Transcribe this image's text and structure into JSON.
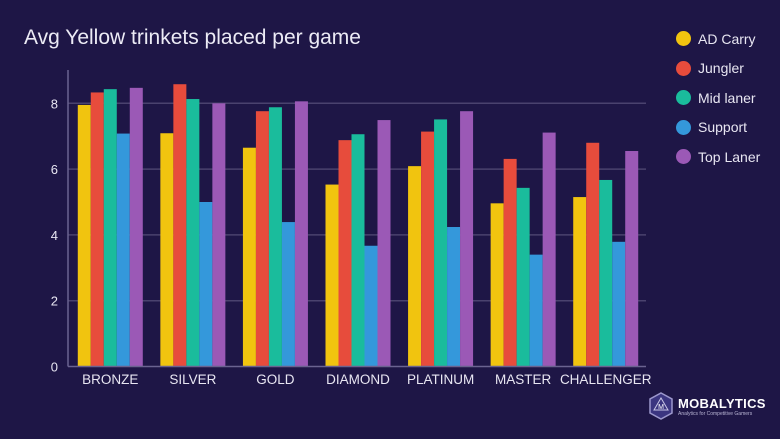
{
  "chart_data": {
    "type": "bar",
    "title": "Avg Yellow trinkets placed per game",
    "xlabel": "",
    "ylabel": "",
    "categories": [
      "BRONZE",
      "SILVER",
      "GOLD",
      "DIAMOND",
      "PLATINUM",
      "MASTER",
      "CHALLENGER"
    ],
    "ylim": [
      0,
      9
    ],
    "yticks": [
      0,
      2,
      4,
      6,
      8
    ],
    "grid": true,
    "legend_position": "right",
    "series": [
      {
        "name": "AD Carry",
        "color": "#f1c40f",
        "values": [
          7.95,
          7.09,
          6.65,
          5.53,
          6.09,
          4.96,
          5.15
        ]
      },
      {
        "name": "Jungler",
        "color": "#e74c3c",
        "values": [
          8.33,
          8.58,
          7.76,
          6.88,
          7.14,
          6.31,
          6.8
        ]
      },
      {
        "name": "Mid laner",
        "color": "#1abc9c",
        "values": [
          8.43,
          8.13,
          7.88,
          7.06,
          7.51,
          5.43,
          5.67
        ]
      },
      {
        "name": "Support",
        "color": "#3498db",
        "values": [
          7.08,
          5.0,
          4.39,
          3.67,
          4.24,
          3.4,
          3.79
        ]
      },
      {
        "name": "Top Laner",
        "color": "#9b59b6",
        "values": [
          8.47,
          8.0,
          8.06,
          7.49,
          7.76,
          7.11,
          6.55
        ]
      }
    ]
  },
  "logo": {
    "name": "MOBALYTICS",
    "tagline": "Analytics for Competitive Gamers"
  }
}
